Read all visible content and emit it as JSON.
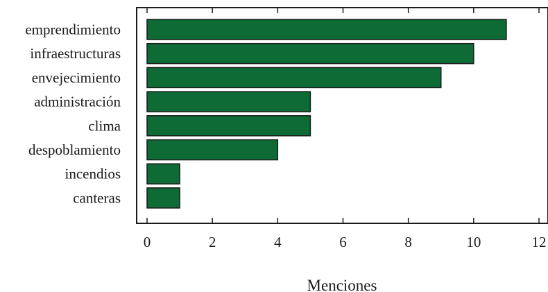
{
  "chart_data": {
    "type": "bar",
    "orientation": "horizontal",
    "categories": [
      "emprendimiento",
      "infraestructuras",
      "envejecimiento",
      "administración",
      "clima",
      "despoblamiento",
      "incendios",
      "canteras"
    ],
    "values": [
      11,
      10,
      9,
      5,
      5,
      4,
      1,
      1
    ],
    "xlabel": "Menciones",
    "ylabel": "",
    "xlim": [
      0,
      12
    ],
    "xticks": [
      0,
      2,
      4,
      6,
      8,
      10,
      12
    ],
    "grid": false,
    "colors": {
      "bar_fill": "#0e6b35",
      "bar_stroke": "#1a1a1a",
      "axis": "#1a1a1a"
    }
  }
}
